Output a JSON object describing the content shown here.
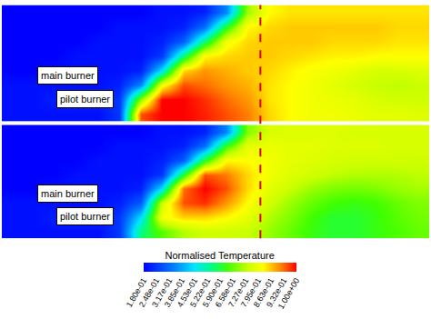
{
  "chart_data": [
    {
      "type": "heatmap",
      "tick_labels": false,
      "annotations": [
        "main burner",
        "pilot burner"
      ],
      "colorbar": {
        "title": "Normalised Temperature",
        "range": [
          0.18,
          1.0
        ],
        "ticks": [
          {
            "value": 0.18,
            "label": "1.80e-01"
          },
          {
            "value": 0.248,
            "label": "2.48e-01"
          },
          {
            "value": 0.317,
            "label": "3.17e-01"
          },
          {
            "value": 0.385,
            "label": "3.85e-01"
          },
          {
            "value": 0.453,
            "label": "4.53e-01"
          },
          {
            "value": 0.522,
            "label": "5.22e-01"
          },
          {
            "value": 0.59,
            "label": "5.90e-01"
          },
          {
            "value": 0.658,
            "label": "6.58e-01"
          },
          {
            "value": 0.727,
            "label": "7.27e-01"
          },
          {
            "value": 0.795,
            "label": "7.95e-01"
          },
          {
            "value": 0.863,
            "label": "8.63e-01"
          },
          {
            "value": 0.932,
            "label": "9.32e-01"
          },
          {
            "value": 1.0,
            "label": "1.00e+00"
          }
        ]
      },
      "z": [
        [
          0.2,
          0.2,
          0.2,
          0.2,
          0.2,
          0.25,
          0.95,
          1.0,
          1.0,
          0.98,
          0.95,
          0.92,
          0.85,
          0.82,
          0.8,
          0.8,
          0.79,
          0.78,
          0.78,
          0.77
        ],
        [
          0.2,
          0.2,
          0.22,
          0.22,
          0.22,
          0.25,
          0.7,
          1.0,
          1.0,
          0.97,
          0.93,
          0.9,
          0.84,
          0.82,
          0.8,
          0.79,
          0.78,
          0.76,
          0.75,
          0.75
        ],
        [
          0.2,
          0.2,
          0.2,
          0.2,
          0.2,
          0.22,
          0.35,
          0.8,
          0.95,
          0.93,
          0.9,
          0.88,
          0.84,
          0.82,
          0.8,
          0.78,
          0.76,
          0.74,
          0.73,
          0.74
        ],
        [
          0.18,
          0.18,
          0.2,
          0.2,
          0.2,
          0.2,
          0.22,
          0.45,
          0.85,
          0.9,
          0.88,
          0.86,
          0.85,
          0.83,
          0.81,
          0.8,
          0.78,
          0.76,
          0.76,
          0.77
        ],
        [
          0.18,
          0.18,
          0.18,
          0.2,
          0.2,
          0.2,
          0.2,
          0.25,
          0.55,
          0.82,
          0.85,
          0.86,
          0.86,
          0.85,
          0.84,
          0.83,
          0.83,
          0.82,
          0.82,
          0.82
        ],
        [
          0.18,
          0.18,
          0.18,
          0.18,
          0.2,
          0.2,
          0.2,
          0.22,
          0.3,
          0.55,
          0.8,
          0.85,
          0.86,
          0.86,
          0.86,
          0.85,
          0.85,
          0.85,
          0.84,
          0.84
        ],
        [
          0.18,
          0.18,
          0.18,
          0.18,
          0.18,
          0.2,
          0.2,
          0.2,
          0.22,
          0.32,
          0.6,
          0.82,
          0.85,
          0.86,
          0.86,
          0.86,
          0.86,
          0.86,
          0.85,
          0.85
        ],
        [
          0.18,
          0.18,
          0.18,
          0.18,
          0.18,
          0.18,
          0.18,
          0.2,
          0.2,
          0.22,
          0.35,
          0.7,
          0.82,
          0.84,
          0.84,
          0.84,
          0.84,
          0.84,
          0.84,
          0.84
        ]
      ]
    },
    {
      "type": "heatmap",
      "tick_labels": false,
      "annotations": [
        "main burner",
        "pilot burner"
      ],
      "z": [
        [
          0.2,
          0.2,
          0.2,
          0.2,
          0.2,
          0.25,
          0.55,
          0.65,
          0.72,
          0.75,
          0.75,
          0.74,
          0.7,
          0.66,
          0.62,
          0.6,
          0.6,
          0.62,
          0.64,
          0.66
        ],
        [
          0.2,
          0.2,
          0.22,
          0.22,
          0.22,
          0.25,
          0.45,
          0.8,
          0.85,
          0.85,
          0.82,
          0.78,
          0.72,
          0.68,
          0.63,
          0.6,
          0.6,
          0.62,
          0.65,
          0.67
        ],
        [
          0.2,
          0.2,
          0.2,
          0.2,
          0.2,
          0.22,
          0.3,
          0.75,
          0.95,
          0.97,
          0.9,
          0.82,
          0.75,
          0.7,
          0.66,
          0.63,
          0.62,
          0.63,
          0.66,
          0.68
        ],
        [
          0.18,
          0.18,
          0.2,
          0.2,
          0.2,
          0.2,
          0.22,
          0.45,
          0.93,
          1.0,
          0.95,
          0.85,
          0.78,
          0.74,
          0.7,
          0.68,
          0.67,
          0.68,
          0.7,
          0.71
        ],
        [
          0.18,
          0.18,
          0.18,
          0.2,
          0.2,
          0.2,
          0.2,
          0.25,
          0.6,
          0.95,
          0.92,
          0.85,
          0.8,
          0.77,
          0.75,
          0.73,
          0.72,
          0.72,
          0.72,
          0.73
        ],
        [
          0.18,
          0.18,
          0.18,
          0.18,
          0.2,
          0.2,
          0.2,
          0.22,
          0.3,
          0.6,
          0.82,
          0.82,
          0.8,
          0.78,
          0.77,
          0.76,
          0.75,
          0.75,
          0.75,
          0.75
        ],
        [
          0.18,
          0.18,
          0.18,
          0.18,
          0.18,
          0.2,
          0.2,
          0.2,
          0.22,
          0.32,
          0.62,
          0.78,
          0.79,
          0.78,
          0.78,
          0.77,
          0.77,
          0.77,
          0.76,
          0.76
        ],
        [
          0.18,
          0.18,
          0.18,
          0.18,
          0.18,
          0.18,
          0.18,
          0.2,
          0.2,
          0.22,
          0.35,
          0.68,
          0.76,
          0.77,
          0.77,
          0.77,
          0.76,
          0.76,
          0.76,
          0.76
        ]
      ]
    }
  ]
}
